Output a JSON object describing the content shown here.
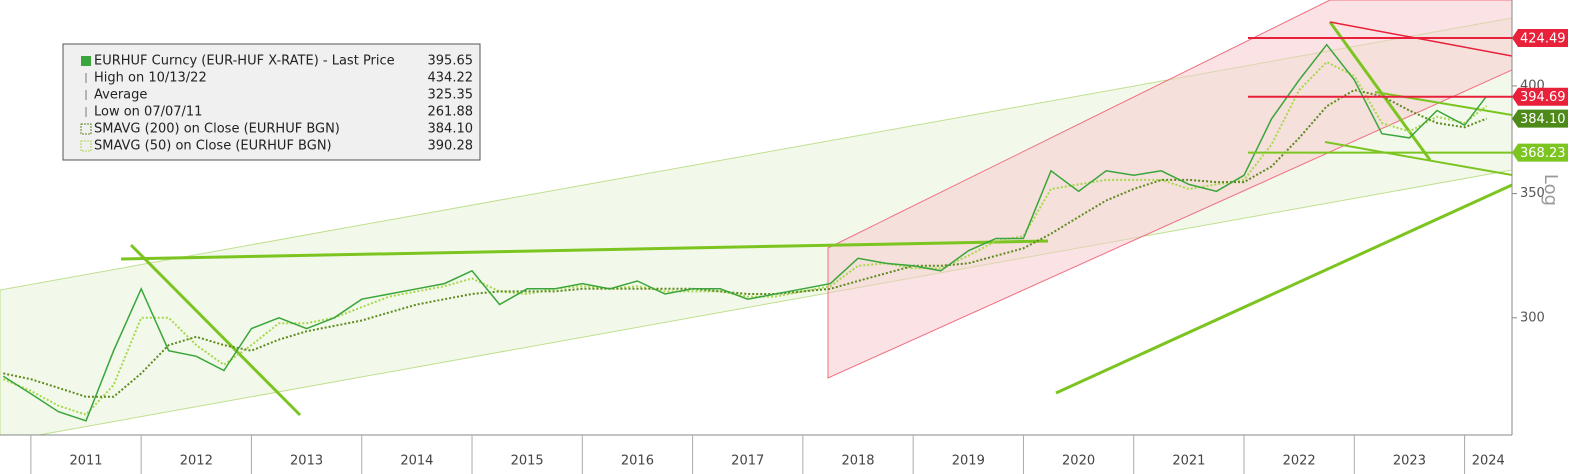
{
  "chart_data": {
    "type": "line",
    "log_scale": true,
    "scale_label": "Log",
    "x": [
      2010.75,
      2011,
      2011.25,
      2011.5,
      2011.75,
      2012,
      2012.25,
      2012.5,
      2012.75,
      2013,
      2013.25,
      2013.5,
      2013.75,
      2014,
      2014.25,
      2014.5,
      2014.75,
      2015,
      2015.25,
      2015.5,
      2015.75,
      2016,
      2016.25,
      2016.5,
      2016.75,
      2017,
      2017.25,
      2017.5,
      2017.75,
      2018,
      2018.25,
      2018.5,
      2018.75,
      2019,
      2019.25,
      2019.5,
      2019.75,
      2020,
      2020.25,
      2020.5,
      2020.75,
      2021,
      2021.25,
      2021.5,
      2021.75,
      2022,
      2022.25,
      2022.5,
      2022.75,
      2023,
      2023.25,
      2023.5,
      2023.75,
      2024,
      2024.2
    ],
    "series": [
      {
        "name": "EURHUF Curncy (EUR-HUF X-RATE) - Last Price",
        "color": "#3aa53a",
        "style": "solid",
        "last": 395.65,
        "values": [
          279,
          273,
          267,
          264,
          288,
          311,
          288,
          286,
          281,
          296,
          300,
          296,
          300,
          307,
          309,
          311,
          313,
          318,
          305,
          311,
          311,
          313,
          311,
          314,
          309,
          311,
          311,
          307,
          309,
          311,
          313,
          323,
          321,
          320,
          318,
          326,
          331,
          331,
          360,
          351,
          360,
          358,
          360,
          354,
          351,
          358,
          384,
          403,
          421,
          403,
          377,
          375,
          388,
          381,
          395
        ]
      },
      {
        "name": "SMAVG (200)  on Close (EURHUF BGN)",
        "color": "#5e8a1e",
        "style": "dotted",
        "last": {
          "value": 384.1,
          "label": "384.10"
        },
        "values": [
          280,
          278,
          275,
          272,
          272,
          280,
          290,
          293,
          290,
          288,
          292,
          295,
          297,
          299,
          302,
          305,
          307,
          309,
          310,
          310,
          310,
          311,
          311,
          311,
          311,
          311,
          310,
          309,
          309,
          310,
          311,
          314,
          317,
          320,
          320,
          321,
          324,
          327,
          333,
          340,
          347,
          352,
          356,
          356,
          355,
          355,
          362,
          375,
          390,
          398,
          395,
          388,
          382,
          380,
          384.1
        ]
      },
      {
        "name": "SMAVG (50)  on Close (EURHUF BGN)",
        "color": "#a8d84a",
        "style": "dotted",
        "last": 390.28,
        "values": [
          278,
          274,
          269,
          266,
          276,
          300,
          300,
          290,
          283,
          290,
          298,
          298,
          300,
          304,
          308,
          310,
          312,
          315,
          310,
          309,
          311,
          312,
          311,
          312,
          310,
          310,
          310,
          308,
          308,
          310,
          312,
          320,
          321,
          319,
          319,
          324,
          330,
          332,
          352,
          354,
          356,
          356,
          356,
          352,
          354,
          356,
          372,
          398,
          412,
          405,
          382,
          378,
          385,
          382,
          390.28
        ]
      }
    ],
    "stats": [
      {
        "label": "High on 10/13/22",
        "value": 434.22
      },
      {
        "label": "Average",
        "value": 325.35
      },
      {
        "label": "Low on 07/07/11",
        "value": 261.88
      }
    ],
    "levels": [
      {
        "value": 424.49,
        "color": "#e8203a",
        "line": true
      },
      {
        "value": 394.69,
        "color": "#e8203a",
        "line": true
      },
      {
        "value": 384.1,
        "label": "384.10",
        "color": "#4e8a1a",
        "line": false
      },
      {
        "value": 368.23,
        "color": "#7cc521",
        "line": true
      }
    ],
    "xlim": [
      2010.72,
      2024.43
    ],
    "xticks": [
      {
        "value": 2011,
        "label": "2011"
      },
      {
        "value": 2012,
        "label": "2012"
      },
      {
        "value": 2013,
        "label": "2013"
      },
      {
        "value": 2014,
        "label": "2014"
      },
      {
        "value": 2015,
        "label": "2015"
      },
      {
        "value": 2016,
        "label": "2016"
      },
      {
        "value": 2017,
        "label": "2017"
      },
      {
        "value": 2018,
        "label": "2018"
      },
      {
        "value": 2019,
        "label": "2019"
      },
      {
        "value": 2020,
        "label": "2020"
      },
      {
        "value": 2021,
        "label": "2021"
      },
      {
        "value": 2022,
        "label": "2022"
      },
      {
        "value": 2023,
        "label": "2023"
      },
      {
        "value": 2024,
        "label": "2024"
      }
    ],
    "ylim": [
      259.4,
      445
    ],
    "yticks": [
      300,
      350,
      400
    ]
  }
}
